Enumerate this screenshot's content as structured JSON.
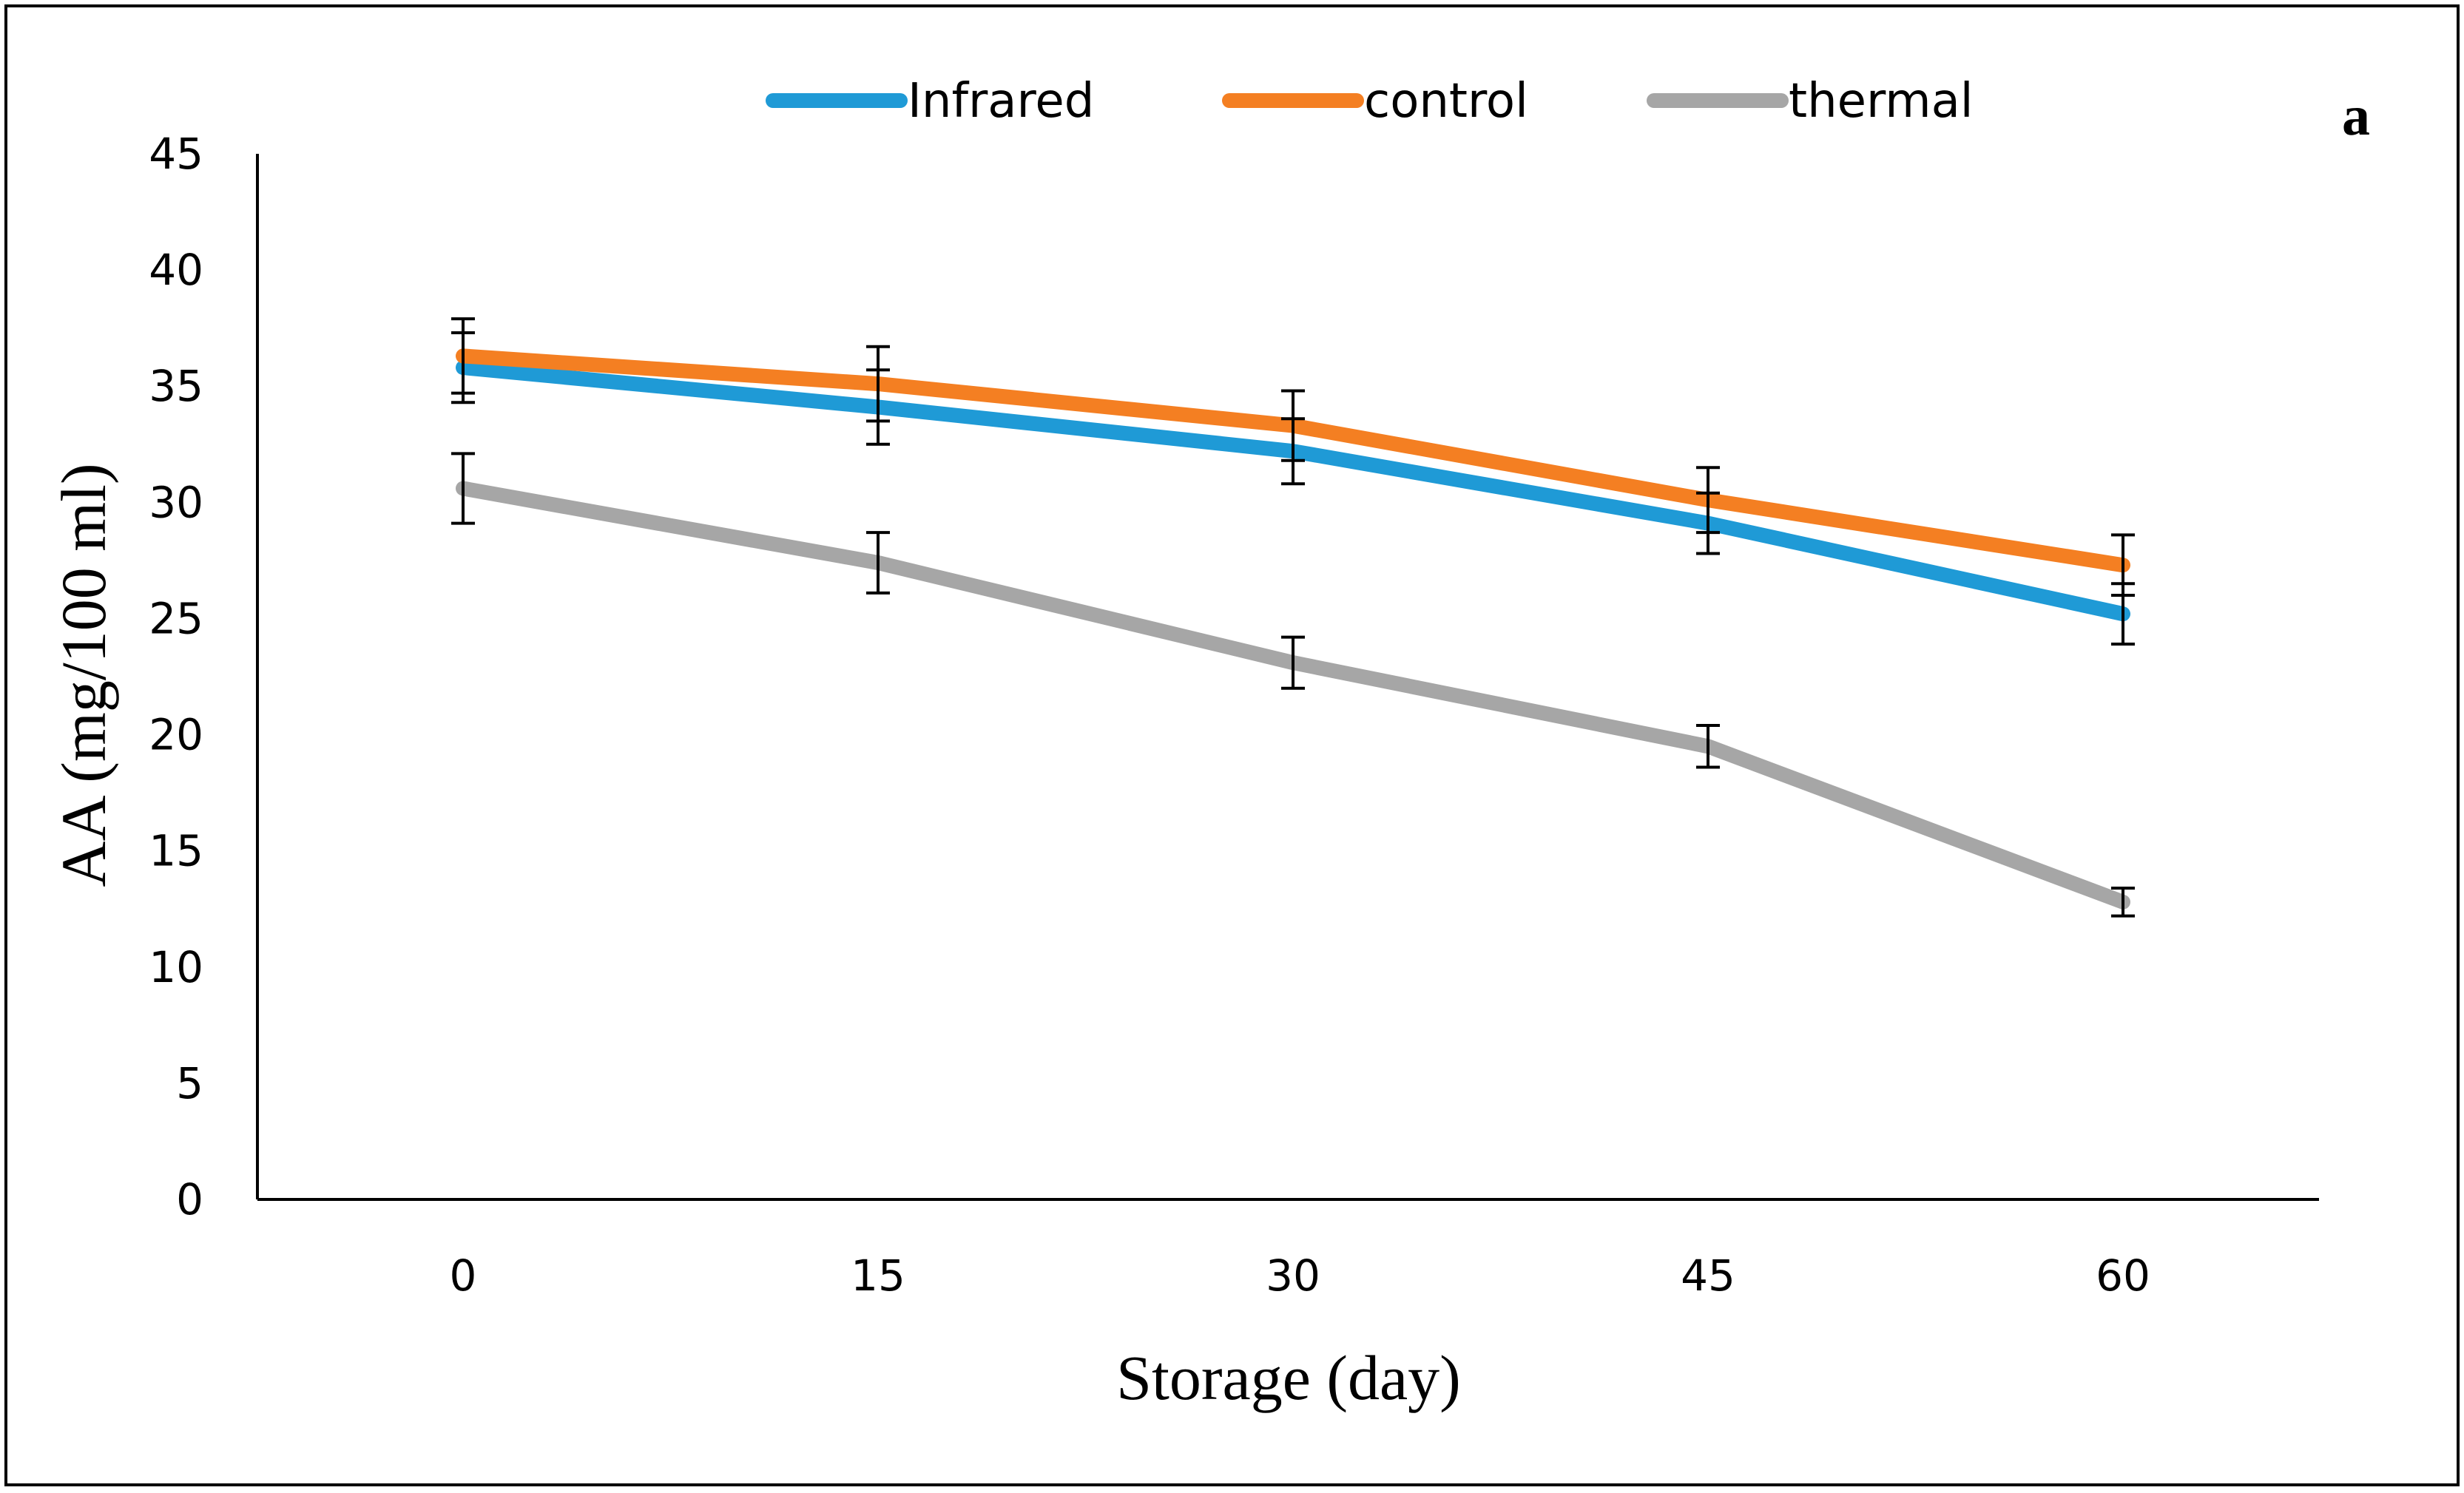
{
  "chart_data": {
    "type": "line",
    "title": "",
    "panel_label": "a",
    "xlabel": "Storage (day)",
    "ylabel": "AA  (mg/100 ml)",
    "x": [
      0,
      15,
      30,
      45,
      60
    ],
    "x_tick_labels": [
      "0",
      "15",
      "30",
      "45",
      "60"
    ],
    "ylim": [
      0,
      45
    ],
    "y_ticks": [
      0,
      5,
      10,
      15,
      20,
      25,
      30,
      35,
      40,
      45
    ],
    "grid": false,
    "legend_position": "top",
    "series": [
      {
        "name": "Infrared",
        "color": "#1f9ad6",
        "values": [
          35.8,
          34.1,
          32.2,
          29.1,
          25.2
        ],
        "errors": [
          1.5,
          1.6,
          1.4,
          1.3,
          1.3
        ]
      },
      {
        "name": "control",
        "color": "#f47f22",
        "values": [
          36.3,
          35.1,
          33.3,
          30.1,
          27.3
        ],
        "errors": [
          1.6,
          1.6,
          1.5,
          1.4,
          1.3
        ]
      },
      {
        "name": "thermal",
        "color": "#a6a6a6",
        "values": [
          30.6,
          27.4,
          23.1,
          19.5,
          12.8
        ],
        "errors": [
          1.5,
          1.3,
          1.1,
          0.9,
          0.6
        ]
      }
    ]
  }
}
